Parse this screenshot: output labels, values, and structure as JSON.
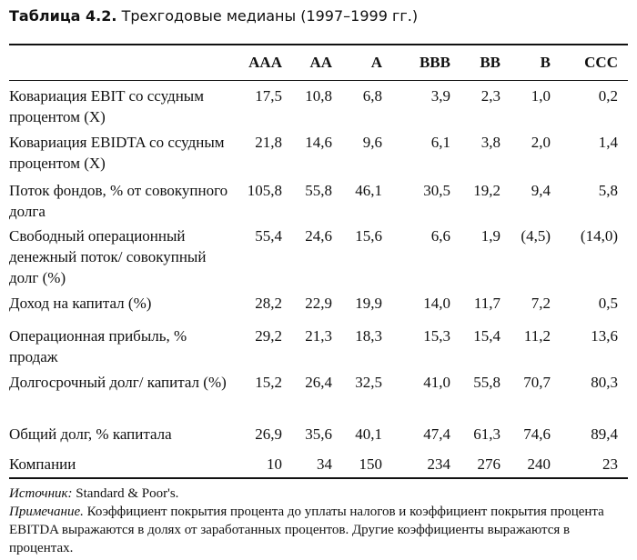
{
  "title": {
    "bold": "Таблица 4.2.",
    "text": "Трехгодовые медианы (1997–1999 гг.)"
  },
  "table": {
    "columns": [
      "AAA",
      "AA",
      "A",
      "BBB",
      "BB",
      "B",
      "CCC"
    ],
    "rows": [
      {
        "label": "Ковариация EBIT со ссудным процентом (X)",
        "values": [
          "17,5",
          "10,8",
          "6,8",
          "3,9",
          "2,3",
          "1,0",
          "0,2"
        ]
      },
      {
        "label": "Ковариация EBIDTA со ссудным процентом (X)",
        "values": [
          "21,8",
          "14,6",
          "9,6",
          "6,1",
          "3,8",
          "2,0",
          "1,4"
        ]
      },
      {
        "label": "Поток фондов, % от совокупного долга",
        "values": [
          "105,8",
          "55,8",
          "46,1",
          "30,5",
          "19,2",
          "9,4",
          "5,8"
        ]
      },
      {
        "label": "Свободный операционный денежный поток/ совокупный долг (%)",
        "values": [
          "55,4",
          "24,6",
          "15,6",
          "6,6",
          "1,9",
          "(4,5)",
          "(14,0)"
        ]
      },
      {
        "label": "Доход на капитал (%)",
        "values": [
          "28,2",
          "22,9",
          "19,9",
          "14,0",
          "11,7",
          "7,2",
          "0,5"
        ]
      },
      {
        "label": "Операционная прибыль, % продаж",
        "values": [
          "29,2",
          "21,3",
          "18,3",
          "15,3",
          "15,4",
          "11,2",
          "13,6"
        ]
      },
      {
        "label": "Долгосрочный долг/ капитал (%)",
        "values": [
          "15,2",
          "26,4",
          "32,5",
          "41,0",
          "55,8",
          "70,7",
          "80,3"
        ]
      },
      {
        "label": "Общий долг, % капитала",
        "values": [
          "26,9",
          "35,6",
          "40,1",
          "47,4",
          "61,3",
          "74,6",
          "89,4"
        ]
      },
      {
        "label": "Компании",
        "values": [
          "10",
          "34",
          "150",
          "234",
          "276",
          "240",
          "23"
        ]
      }
    ]
  },
  "source": {
    "label": "Источник:",
    "text": "Standard & Poor's."
  },
  "note": {
    "label": "Примечание.",
    "text": "Коэффициент покрытия процента до уплаты налогов и коэффициент покрытия процента EBITDA выражаются в долях от заработанных процентов. Другие коэффициенты выражаются в процентах."
  }
}
